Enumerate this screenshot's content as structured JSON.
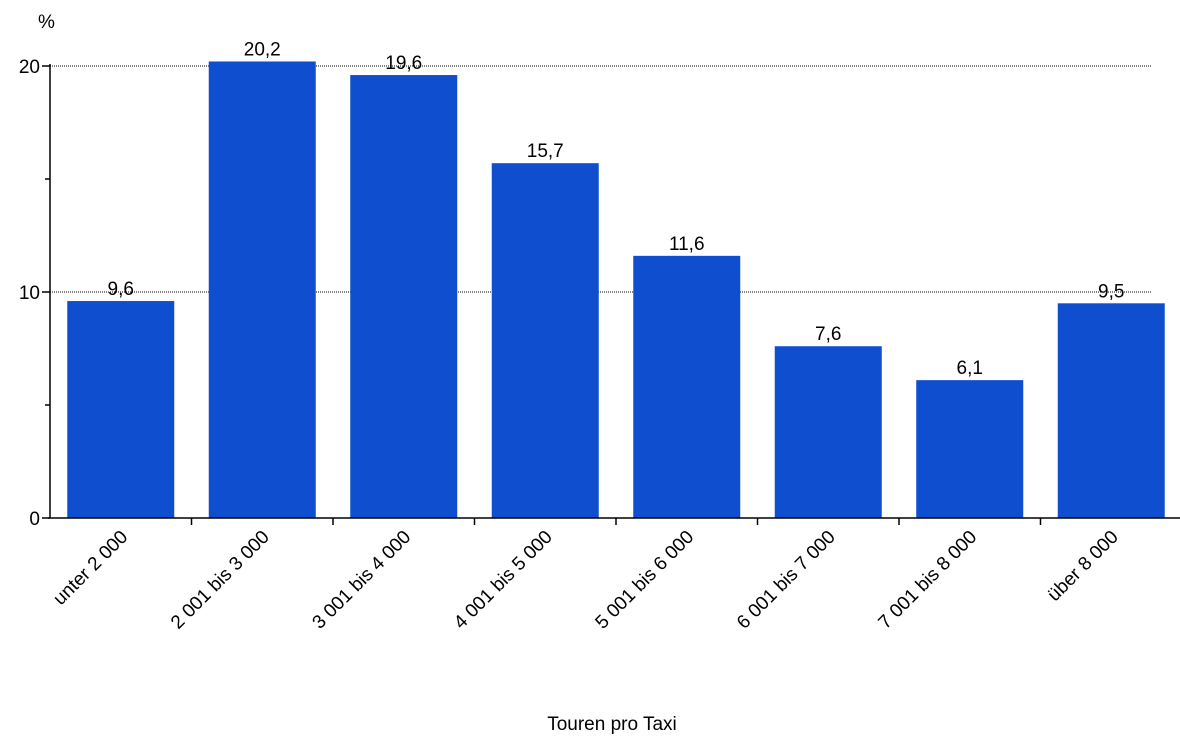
{
  "chart_data": {
    "type": "bar",
    "categories": [
      "unter 2 000",
      "2 001 bis 3 000",
      "3 001 bis 4 000",
      "4 001 bis 5 000",
      "5 001 bis 6 000",
      "6 001 bis 7 000",
      "7 001 bis 8 000",
      "über 8 000"
    ],
    "values": [
      9.6,
      20.2,
      19.6,
      15.7,
      11.6,
      7.6,
      6.1,
      9.5
    ],
    "data_labels": [
      "9,6",
      "20,2",
      "19,6",
      "15,7",
      "11,6",
      "7,6",
      "6,1",
      "9,5"
    ],
    "title": "",
    "xlabel": "Touren pro Taxi",
    "ylabel": "%",
    "ylim": [
      0,
      20
    ],
    "yticks": [
      0,
      10,
      20
    ],
    "ytick_labels": [
      "0",
      "10",
      "20"
    ],
    "grid": "dotted horizontal at labeled ticks",
    "bar_color": "#0f4fcf"
  }
}
